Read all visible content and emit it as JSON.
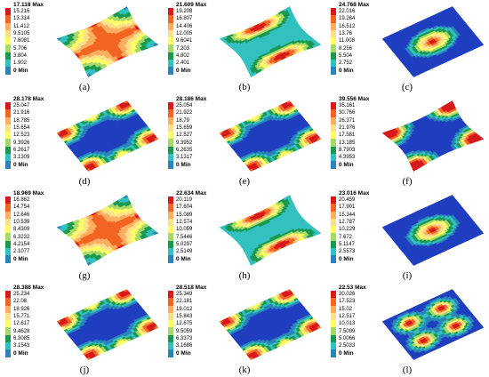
{
  "legend_colors": [
    "#d7191c",
    "#f26522",
    "#fdae61",
    "#fee08b",
    "#ffff66",
    "#a6d96a",
    "#1a9850",
    "#33c0c0",
    "#2b83ba",
    "#1f3fbf"
  ],
  "panels": [
    {
      "label": "(a)",
      "max": "17.118 Max",
      "ticks": [
        "15.216",
        "13.314",
        "11.412",
        "9.5105",
        "7.6081",
        "5.706",
        "3.804",
        "1.902"
      ],
      "min": "0 Min",
      "mode": "saddle",
      "shape": "pinch"
    },
    {
      "label": "(b)",
      "max": "21.609 Max",
      "ticks": [
        "19.208",
        "16.807",
        "14.406",
        "12.005",
        "9.6041",
        "7.203",
        "4.802",
        "2.401"
      ],
      "min": "0 Min",
      "mode": "two-lobe",
      "shape": "pinch"
    },
    {
      "label": "(c)",
      "max": "24.768 Max",
      "ticks": [
        "22.016",
        "19.264",
        "16.512",
        "13.76",
        "11.008",
        "8.256",
        "5.504",
        "2.752"
      ],
      "min": "0 Min",
      "mode": "center",
      "shape": "rhombus"
    },
    {
      "label": "(d)",
      "max": "28.178 Max",
      "ticks": [
        "25.047",
        "21.916",
        "18.785",
        "15.654",
        "12.523",
        "9.3926",
        "6.2617",
        "3.1309"
      ],
      "min": "0 Min",
      "mode": "corners",
      "shape": "rhombus"
    },
    {
      "label": "(e)",
      "max": "28.186 Max",
      "ticks": [
        "25.054",
        "21.922",
        "18.79",
        "15.659",
        "12.527",
        "9.3952",
        "6.2635",
        "3.1317"
      ],
      "min": "0 Min",
      "mode": "corners",
      "shape": "rhombus"
    },
    {
      "label": "(f)",
      "max": "39.556 Max",
      "ticks": [
        "35.161",
        "30.766",
        "26.371",
        "21.976",
        "17.581",
        "13.185",
        "8.7903",
        "4.3953"
      ],
      "min": "0 Min",
      "mode": "corners-strong",
      "shape": "pinch"
    },
    {
      "label": "(g)",
      "max": "18.969 Max",
      "ticks": [
        "16.862",
        "14.754",
        "12.646",
        "10.539",
        "8.4309",
        "6.3232",
        "4.2154",
        "2.1077"
      ],
      "min": "0 Min",
      "mode": "saddle",
      "shape": "pinch"
    },
    {
      "label": "(h)",
      "max": "22.634 Max",
      "ticks": [
        "20.119",
        "17.604",
        "15.089",
        "12.574",
        "10.059",
        "7.5446",
        "5.0297",
        "2.5149"
      ],
      "min": "0 Min",
      "mode": "two-lobe",
      "shape": "pinch"
    },
    {
      "label": "(i)",
      "max": "23.016 Max",
      "ticks": [
        "20.459",
        "17.901",
        "15.344",
        "12.787",
        "10.229",
        "7.672",
        "5.1147",
        "2.5573"
      ],
      "min": "0 Min",
      "mode": "center",
      "shape": "rhombus"
    },
    {
      "label": "(j)",
      "max": "28.388 Max",
      "ticks": [
        "25.234",
        "22.08",
        "18.926",
        "15.771",
        "12.617",
        "9.4628",
        "6.3085",
        "3.1543"
      ],
      "min": "0 Min",
      "mode": "corners",
      "shape": "rhombus"
    },
    {
      "label": "(k)",
      "max": "28.518 Max",
      "ticks": [
        "25.349",
        "22.181",
        "19.012",
        "15.843",
        "12.675",
        "9.5059",
        "6.3373",
        "3.1686"
      ],
      "min": "0 Min",
      "mode": "corners",
      "shape": "rhombus"
    },
    {
      "label": "(l)",
      "max": "22.53 Max",
      "ticks": [
        "20.026",
        "17.523",
        "15.02",
        "12.517",
        "10.013",
        "7.5099",
        "5.0066",
        "2.5033"
      ],
      "min": "0 Min",
      "mode": "four-lobe",
      "shape": "rhombus"
    }
  ]
}
